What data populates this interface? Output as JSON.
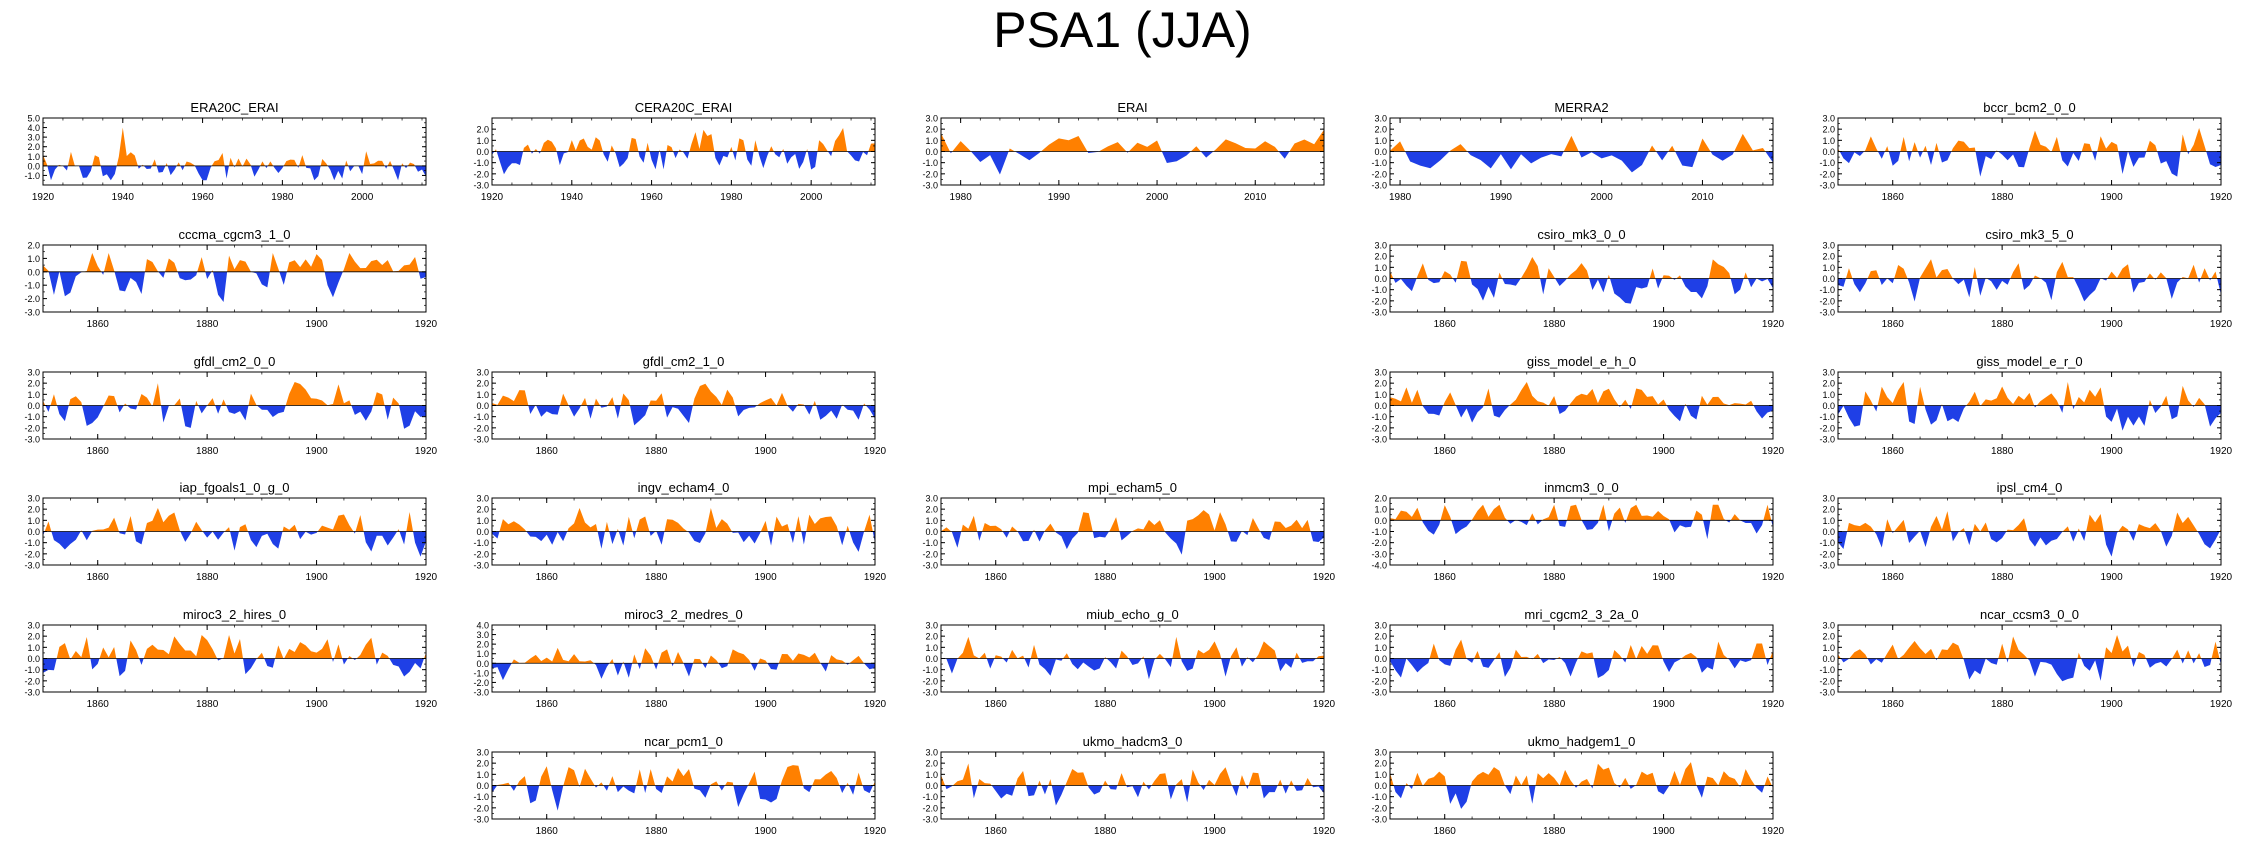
{
  "title": "PSA1 (JJA)",
  "colors": {
    "positive": "#ff8000",
    "negative": "#1f3fe6",
    "axis": "#000000",
    "zero_line": "#000000"
  },
  "chart_data": [
    {
      "type": "area",
      "title": "ERA20C_ERAI",
      "years": [
        1920,
        2016
      ],
      "xticks": [
        1920,
        1940,
        1960,
        1980,
        2000
      ],
      "ylim": [
        -2.0,
        5.0
      ],
      "yticks": [
        -1.0,
        0.0,
        1.0,
        2.0,
        3.0,
        4.0,
        5.0
      ],
      "seed": 11,
      "amp": 1.0,
      "spike": {
        "year": 1940,
        "value": 4.0
      }
    },
    {
      "type": "area",
      "title": "CERA20C_ERAI",
      "years": [
        1920,
        2016
      ],
      "xticks": [
        1920,
        1940,
        1960,
        1980,
        2000
      ],
      "ylim": [
        -3.0,
        3.0
      ],
      "yticks": [
        -3.0,
        -2.0,
        -1.0,
        0.0,
        1.0,
        2.0
      ],
      "seed": 12,
      "amp": 1.0
    },
    {
      "type": "area",
      "title": "ERAI",
      "years": [
        1978,
        2017
      ],
      "xticks": [
        1980,
        1990,
        2000,
        2010
      ],
      "ylim": [
        -3.0,
        3.0
      ],
      "yticks": [
        -3.0,
        -2.0,
        -1.0,
        0.0,
        1.0,
        2.0,
        3.0
      ],
      "seed": 13,
      "amp": 1.1
    },
    {
      "type": "area",
      "title": "MERRA2",
      "years": [
        1979,
        2017
      ],
      "xticks": [
        1980,
        1990,
        2000,
        2010
      ],
      "ylim": [
        -3.0,
        3.0
      ],
      "yticks": [
        -3.0,
        -2.0,
        -1.0,
        0.0,
        1.0,
        2.0,
        3.0
      ],
      "seed": 14,
      "amp": 1.1
    },
    {
      "type": "area",
      "title": "bccr_bcm2_0_0",
      "years": [
        1850,
        1920
      ],
      "xticks": [
        1860,
        1880,
        1900,
        1920
      ],
      "ylim": [
        -3.0,
        3.0
      ],
      "yticks": [
        -3.0,
        -2.0,
        -1.0,
        0.0,
        1.0,
        2.0,
        3.0
      ],
      "seed": 15,
      "amp": 1.2
    },
    {
      "type": "area",
      "title": "cccma_cgcm3_1_0",
      "years": [
        1850,
        1920
      ],
      "xticks": [
        1860,
        1880,
        1900,
        1920
      ],
      "ylim": [
        -3.0,
        2.0
      ],
      "yticks": [
        -3.0,
        -2.0,
        -1.0,
        0.0,
        1.0,
        2.0
      ],
      "seed": 21,
      "amp": 1.2
    },
    {
      "type": "area",
      "title": "csiro_mk3_0_0",
      "years": [
        1850,
        1920
      ],
      "xticks": [
        1860,
        1880,
        1900,
        1920
      ],
      "ylim": [
        -3.0,
        3.0
      ],
      "yticks": [
        -3.0,
        -2.0,
        -1.0,
        0.0,
        1.0,
        2.0,
        3.0
      ],
      "seed": 22,
      "amp": 1.1
    },
    {
      "type": "area",
      "title": "csiro_mk3_5_0",
      "years": [
        1850,
        1920
      ],
      "xticks": [
        1860,
        1880,
        1900,
        1920
      ],
      "ylim": [
        -3.0,
        3.0
      ],
      "yticks": [
        -3.0,
        -2.0,
        -1.0,
        0.0,
        1.0,
        2.0,
        3.0
      ],
      "seed": 23,
      "amp": 1.2
    },
    {
      "type": "area",
      "title": "gfdl_cm2_0_0",
      "years": [
        1850,
        1920
      ],
      "xticks": [
        1860,
        1880,
        1900,
        1920
      ],
      "ylim": [
        -3.0,
        3.0
      ],
      "yticks": [
        -3.0,
        -2.0,
        -1.0,
        0.0,
        1.0,
        2.0,
        3.0
      ],
      "seed": 31,
      "amp": 1.1
    },
    {
      "type": "area",
      "title": "gfdl_cm2_1_0",
      "years": [
        1850,
        1920
      ],
      "xticks": [
        1860,
        1880,
        1900,
        1920
      ],
      "ylim": [
        -3.0,
        3.0
      ],
      "yticks": [
        -3.0,
        -2.0,
        -1.0,
        0.0,
        1.0,
        2.0,
        3.0
      ],
      "seed": 32,
      "amp": 1.1
    },
    {
      "type": "area",
      "title": "giss_model_e_h_0",
      "years": [
        1850,
        1920
      ],
      "xticks": [
        1860,
        1880,
        1900,
        1920
      ],
      "ylim": [
        -3.0,
        3.0
      ],
      "yticks": [
        -3.0,
        -2.0,
        -1.0,
        0.0,
        1.0,
        2.0,
        3.0
      ],
      "seed": 33,
      "amp": 1.0
    },
    {
      "type": "area",
      "title": "giss_model_e_r_0",
      "years": [
        1850,
        1920
      ],
      "xticks": [
        1860,
        1880,
        1900,
        1920
      ],
      "ylim": [
        -3.0,
        3.0
      ],
      "yticks": [
        -3.0,
        -2.0,
        -1.0,
        0.0,
        1.0,
        2.0,
        3.0
      ],
      "seed": 34,
      "amp": 1.2
    },
    {
      "type": "area",
      "title": "iap_fgoals1_0_g_0",
      "years": [
        1850,
        1920
      ],
      "xticks": [
        1860,
        1880,
        1900,
        1920
      ],
      "ylim": [
        -3.0,
        3.0
      ],
      "yticks": [
        -3.0,
        -2.0,
        -1.0,
        0.0,
        1.0,
        2.0,
        3.0
      ],
      "seed": 41,
      "amp": 1.1
    },
    {
      "type": "area",
      "title": "ingv_echam4_0",
      "years": [
        1850,
        1920
      ],
      "xticks": [
        1860,
        1880,
        1900,
        1920
      ],
      "ylim": [
        -3.0,
        3.0
      ],
      "yticks": [
        -3.0,
        -2.0,
        -1.0,
        0.0,
        1.0,
        2.0,
        3.0
      ],
      "seed": 42,
      "amp": 1.2
    },
    {
      "type": "area",
      "title": "mpi_echam5_0",
      "years": [
        1850,
        1920
      ],
      "xticks": [
        1860,
        1880,
        1900,
        1920
      ],
      "ylim": [
        -3.0,
        3.0
      ],
      "yticks": [
        -3.0,
        -2.0,
        -1.0,
        0.0,
        1.0,
        2.0,
        3.0
      ],
      "seed": 43,
      "amp": 1.1
    },
    {
      "type": "area",
      "title": "inmcm3_0_0",
      "years": [
        1850,
        1920
      ],
      "xticks": [
        1860,
        1880,
        1900,
        1920
      ],
      "ylim": [
        -4.0,
        2.0
      ],
      "yticks": [
        -4.0,
        -3.0,
        -2.0,
        -1.0,
        0.0,
        1.0,
        2.0
      ],
      "seed": 44,
      "amp": 1.1
    },
    {
      "type": "area",
      "title": "ipsl_cm4_0",
      "years": [
        1850,
        1920
      ],
      "xticks": [
        1860,
        1880,
        1900,
        1920
      ],
      "ylim": [
        -3.0,
        3.0
      ],
      "yticks": [
        -3.0,
        -2.0,
        -1.0,
        0.0,
        1.0,
        2.0,
        3.0
      ],
      "seed": 45,
      "amp": 1.1
    },
    {
      "type": "area",
      "title": "miroc3_2_hires_0",
      "years": [
        1850,
        1920
      ],
      "xticks": [
        1860,
        1880,
        1900,
        1920
      ],
      "ylim": [
        -3.0,
        3.0
      ],
      "yticks": [
        -3.0,
        -2.0,
        -1.0,
        0.0,
        1.0,
        2.0,
        3.0
      ],
      "seed": 51,
      "amp": 1.2
    },
    {
      "type": "area",
      "title": "miroc3_2_medres_0",
      "years": [
        1850,
        1920
      ],
      "xticks": [
        1860,
        1880,
        1900,
        1920
      ],
      "ylim": [
        -3.0,
        4.0
      ],
      "yticks": [
        -3.0,
        -2.0,
        -1.0,
        0.0,
        1.0,
        2.0,
        3.0,
        4.0
      ],
      "seed": 52,
      "amp": 1.0
    },
    {
      "type": "area",
      "title": "miub_echo_g_0",
      "years": [
        1850,
        1920
      ],
      "xticks": [
        1860,
        1880,
        1900,
        1920
      ],
      "ylim": [
        -3.0,
        3.0
      ],
      "yticks": [
        -3.0,
        -2.0,
        -1.0,
        0.0,
        1.0,
        2.0,
        3.0
      ],
      "seed": 53,
      "amp": 1.1
    },
    {
      "type": "area",
      "title": "mri_cgcm2_3_2a_0",
      "years": [
        1850,
        1920
      ],
      "xticks": [
        1860,
        1880,
        1900,
        1920
      ],
      "ylim": [
        -3.0,
        3.0
      ],
      "yticks": [
        -3.0,
        -2.0,
        -1.0,
        0.0,
        1.0,
        2.0,
        3.0
      ],
      "seed": 54,
      "amp": 1.2
    },
    {
      "type": "area",
      "title": "ncar_ccsm3_0_0",
      "years": [
        1850,
        1920
      ],
      "xticks": [
        1860,
        1880,
        1900,
        1920
      ],
      "ylim": [
        -3.0,
        3.0
      ],
      "yticks": [
        -3.0,
        -2.0,
        -1.0,
        0.0,
        1.0,
        2.0,
        3.0
      ],
      "seed": 55,
      "amp": 1.1
    },
    {
      "type": "area",
      "title": "ncar_pcm1_0",
      "years": [
        1850,
        1920
      ],
      "xticks": [
        1860,
        1880,
        1900,
        1920
      ],
      "ylim": [
        -3.0,
        3.0
      ],
      "yticks": [
        -3.0,
        -2.0,
        -1.0,
        0.0,
        1.0,
        2.0,
        3.0
      ],
      "seed": 62,
      "amp": 1.2
    },
    {
      "type": "area",
      "title": "ukmo_hadcm3_0",
      "years": [
        1850,
        1920
      ],
      "xticks": [
        1860,
        1880,
        1900,
        1920
      ],
      "ylim": [
        -3.0,
        3.0
      ],
      "yticks": [
        -3.0,
        -2.0,
        -1.0,
        0.0,
        1.0,
        2.0,
        3.0
      ],
      "seed": 63,
      "amp": 1.1
    },
    {
      "type": "area",
      "title": "ukmo_hadgem1_0",
      "years": [
        1850,
        1920
      ],
      "xticks": [
        1860,
        1880,
        1900,
        1920
      ],
      "ylim": [
        -3.0,
        3.0
      ],
      "yticks": [
        -3.0,
        -2.0,
        -1.0,
        0.0,
        1.0,
        2.0,
        3.0
      ],
      "seed": 64,
      "amp": 1.1
    }
  ]
}
